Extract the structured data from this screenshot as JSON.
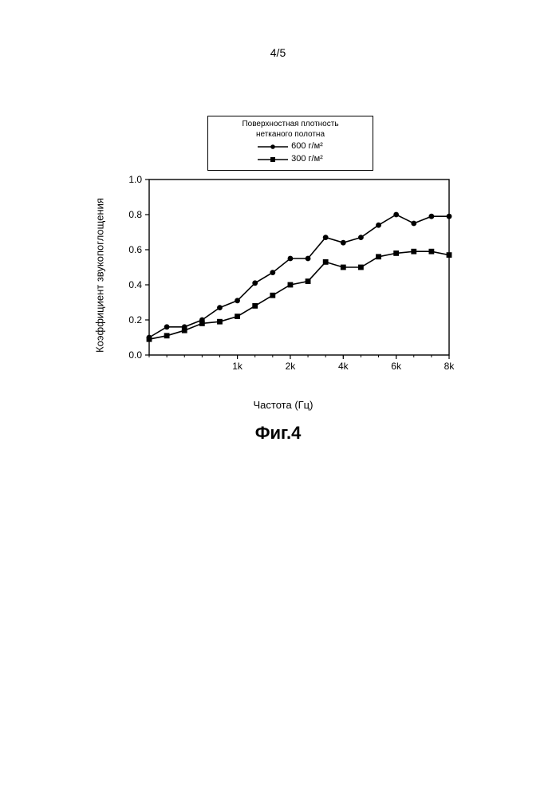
{
  "page": {
    "number": "4/5"
  },
  "figure": {
    "caption": "Фиг.4"
  },
  "legend": {
    "title_line1": "Поверхностная плотность",
    "title_line2": "нетканого полотна",
    "items": [
      {
        "label": "600 г/м²",
        "marker": "circle",
        "color": "#000000"
      },
      {
        "label": "300 г/м²",
        "marker": "square",
        "color": "#000000"
      }
    ]
  },
  "chart": {
    "type": "line",
    "xlabel": "Частота (Гц)",
    "ylabel": "Коэффициент звукопоглощения",
    "ylim": [
      0.0,
      1.0
    ],
    "ytick_step": 0.2,
    "yticks": [
      0.0,
      0.2,
      0.4,
      0.6,
      0.8,
      1.0
    ],
    "ytick_labels": [
      "0.0",
      "0.2",
      "0.4",
      "0.6",
      "0.8",
      "1.0"
    ],
    "x_positions": [
      0,
      1,
      2,
      3,
      4,
      5,
      6,
      7,
      8,
      9,
      10,
      11,
      12,
      13,
      14,
      15,
      16,
      17
    ],
    "x_tick_positions": [
      5,
      8,
      11,
      14,
      17
    ],
    "x_tick_labels": [
      "1k",
      "2k",
      "4k",
      "6k",
      "8k"
    ],
    "plot_bg": "#ffffff",
    "axis_color": "#000000",
    "line_width": 1.6,
    "marker_size": 3.4,
    "series": [
      {
        "name": "600 г/м²",
        "marker": "circle",
        "color": "#000000",
        "y": [
          0.1,
          0.16,
          0.16,
          0.2,
          0.27,
          0.31,
          0.41,
          0.47,
          0.55,
          0.55,
          0.67,
          0.64,
          0.67,
          0.74,
          0.8,
          0.75,
          0.79,
          0.79
        ]
      },
      {
        "name": "300 г/м²",
        "marker": "square",
        "color": "#000000",
        "y": [
          0.09,
          0.11,
          0.14,
          0.18,
          0.19,
          0.22,
          0.28,
          0.34,
          0.4,
          0.42,
          0.53,
          0.5,
          0.5,
          0.56,
          0.58,
          0.59,
          0.59,
          0.57
        ]
      }
    ]
  }
}
